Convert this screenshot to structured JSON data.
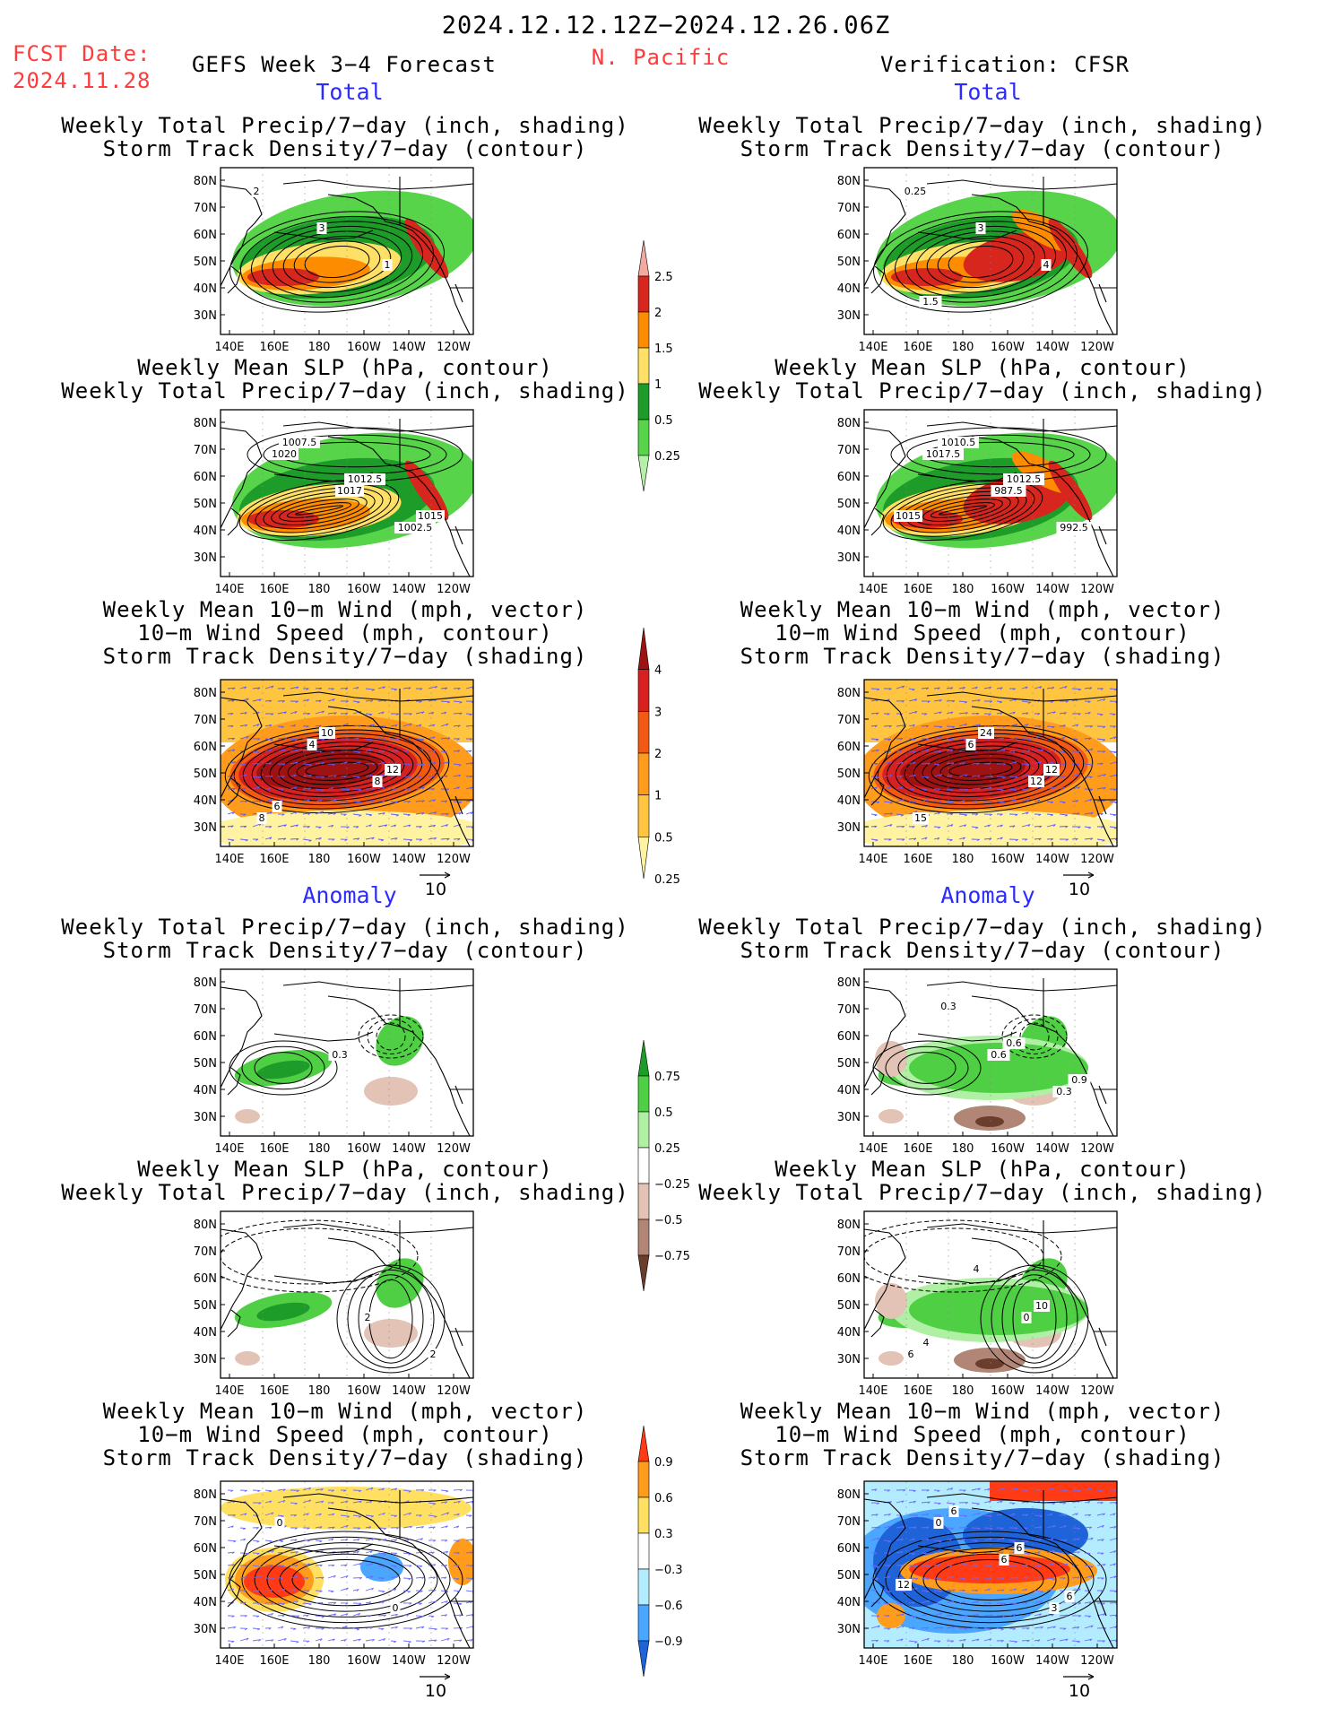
{
  "header": {
    "date_range": "2024.12.12.12Z−2024.12.26.06Z",
    "fcst_date_label": "FCST Date:",
    "fcst_date_value": "2024.11.28",
    "forecast_title": "GEFS Week 3−4 Forecast",
    "region": "N. Pacific",
    "verification": "Verification: CFSR"
  },
  "sections": {
    "total": "Total",
    "anomaly": "Anomaly"
  },
  "titles": {
    "precip": "Weekly Total Precip/7−day (inch, shading)",
    "std_contour": "Storm Track Density/7−day (contour)",
    "slp": "Weekly Mean SLP (hPa, contour)",
    "wind_vec": "Weekly Mean 10−m Wind (mph, vector)",
    "wind_spd": "10−m Wind Speed (mph, contour)",
    "std_shading": "Storm Track Density/7−day (shading)"
  },
  "axes": {
    "lat_labels": [
      "80N",
      "70N",
      "60N",
      "50N",
      "40N",
      "30N"
    ],
    "lon_labels": [
      "140E",
      "160E",
      "180",
      "160W",
      "140W",
      "120W"
    ]
  },
  "vector_ref": "10",
  "colorbars": [
    {
      "name": "precip-total",
      "labels": [
        "2.5",
        "2",
        "1.5",
        "1",
        "0.5",
        "0.25"
      ],
      "colors": [
        "#f1a9a0",
        "#d7261e",
        "#fd8c00",
        "#ffe066",
        "#1e9c2a",
        "#58d44b",
        "#b5f0a8"
      ]
    },
    {
      "name": "std-total",
      "labels": [
        "4",
        "3",
        "2",
        "1",
        "0.5",
        "0.25"
      ],
      "colors": [
        "#9e1212",
        "#d72020",
        "#f25a14",
        "#ff9c1c",
        "#ffc440",
        "#fff2a0"
      ]
    },
    {
      "name": "precip-anom",
      "labels": [
        "0.75",
        "0.5",
        "0.25",
        "−0.25",
        "−0.5",
        "−0.75"
      ],
      "colors": [
        "#1e9c2a",
        "#4fcf43",
        "#aff0a4",
        "#ffffff",
        "#e2c3b6",
        "#b18676",
        "#6b3d2c"
      ]
    },
    {
      "name": "std-anom",
      "labels": [
        "0.9",
        "0.6",
        "0.3",
        "−0.3",
        "−0.6",
        "−0.9"
      ],
      "colors": [
        "#ff3a14",
        "#ff9c1c",
        "#ffe060",
        "#ffffff",
        "#b4ecff",
        "#4aa6ff",
        "#1e64d8"
      ]
    }
  ],
  "panels": [
    {
      "id": "fcst-total-precip",
      "contour_labels": [
        "2",
        "3",
        "1"
      ]
    },
    {
      "id": "cfsr-total-precip",
      "contour_labels": [
        "0.25",
        "3",
        "4",
        "1.5"
      ]
    },
    {
      "id": "fcst-total-slp",
      "contour_labels": [
        "1020",
        "1017",
        "1002.5",
        "1007.5",
        "1012.5",
        "1015"
      ]
    },
    {
      "id": "cfsr-total-slp",
      "contour_labels": [
        "1017.5",
        "987.5",
        "992.5",
        "1010.5",
        "1012.5",
        "1015"
      ]
    },
    {
      "id": "fcst-total-wind",
      "contour_labels": [
        "4",
        "8",
        "8",
        "10",
        "12",
        "6"
      ]
    },
    {
      "id": "cfsr-total-wind",
      "contour_labels": [
        "6",
        "12",
        "15",
        "24",
        "12"
      ]
    },
    {
      "id": "fcst-anom-precip",
      "contour_labels": [
        "0.3"
      ]
    },
    {
      "id": "cfsr-anom-precip",
      "contour_labels": [
        "0.6",
        "0.3",
        "0.3",
        "0.6",
        "0.9"
      ]
    },
    {
      "id": "fcst-anom-slp",
      "contour_labels": [
        "2",
        "2"
      ]
    },
    {
      "id": "cfsr-anom-slp",
      "contour_labels": [
        "0",
        "6",
        "4",
        "10",
        "4"
      ]
    },
    {
      "id": "fcst-anom-wind",
      "contour_labels": [
        "0",
        "0"
      ]
    },
    {
      "id": "cfsr-anom-wind",
      "contour_labels": [
        "3",
        "0",
        "6",
        "6",
        "6",
        "6",
        "12"
      ]
    }
  ]
}
